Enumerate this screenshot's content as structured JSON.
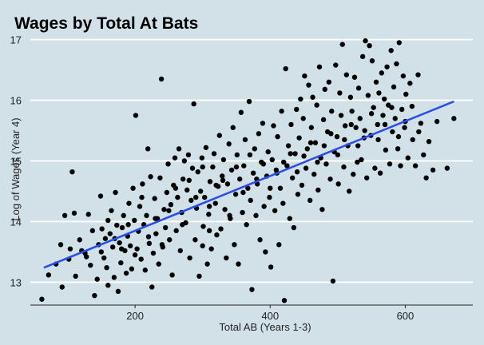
{
  "chart_data": {
    "type": "scatter",
    "title": "Wages by Total At Bats",
    "xlabel": "Total AB (Years 1-3)",
    "ylabel": "Log of Wages (Year 4)",
    "xlim": [
      45,
      700
    ],
    "ylim": [
      12.65,
      17.1
    ],
    "xticks": [
      200,
      400,
      600
    ],
    "yticks": [
      13,
      14,
      15,
      16,
      17
    ],
    "x_tick_labels": [
      "200",
      "400",
      "600"
    ],
    "y_tick_labels": [
      "13",
      "14",
      "15",
      "16",
      "17"
    ],
    "grid": "horizontal",
    "trend_line": {
      "x": [
        65,
        672
      ],
      "y": [
        13.24,
        15.98
      ],
      "color": "#2b4fe6"
    },
    "point_color": "#000000",
    "points": [
      [
        62,
        12.72
      ],
      [
        72,
        13.12
      ],
      [
        83,
        13.3
      ],
      [
        90,
        13.62
      ],
      [
        92,
        12.92
      ],
      [
        96,
        14.1
      ],
      [
        102,
        13.38
      ],
      [
        104,
        13.55
      ],
      [
        107,
        14.82
      ],
      [
        110,
        14.14
      ],
      [
        112,
        13.1
      ],
      [
        118,
        13.7
      ],
      [
        121,
        13.52
      ],
      [
        126,
        13.48
      ],
      [
        128,
        13.42
      ],
      [
        131,
        14.12
      ],
      [
        134,
        13.28
      ],
      [
        137,
        13.85
      ],
      [
        140,
        12.78
      ],
      [
        144,
        13.05
      ],
      [
        146,
        13.62
      ],
      [
        149,
        14.42
      ],
      [
        151,
        13.88
      ],
      [
        154,
        13.4
      ],
      [
        156,
        13.72
      ],
      [
        158,
        13.24
      ],
      [
        160,
        12.95
      ],
      [
        163,
        13.8
      ],
      [
        165,
        14.18
      ],
      [
        167,
        13.58
      ],
      [
        169,
        13.08
      ],
      [
        171,
        14.48
      ],
      [
        173,
        13.94
      ],
      [
        175,
        12.85
      ],
      [
        177,
        13.65
      ],
      [
        179,
        13.32
      ],
      [
        181,
        13.9
      ],
      [
        183,
        14.1
      ],
      [
        185,
        13.52
      ],
      [
        187,
        13.15
      ],
      [
        189,
        13.76
      ],
      [
        191,
        14.3
      ],
      [
        193,
        13.6
      ],
      [
        195,
        13.22
      ],
      [
        197,
        14.55
      ],
      [
        199,
        14.02
      ],
      [
        201,
        15.75
      ],
      [
        203,
        13.55
      ],
      [
        205,
        13.84
      ],
      [
        207,
        14.25
      ],
      [
        209,
        13.38
      ],
      [
        211,
        14.62
      ],
      [
        213,
        13.95
      ],
      [
        215,
        13.2
      ],
      [
        217,
        14.1
      ],
      [
        219,
        15.2
      ],
      [
        221,
        13.64
      ],
      [
        223,
        14.74
      ],
      [
        225,
        12.92
      ],
      [
        227,
        13.48
      ],
      [
        229,
        14.38
      ],
      [
        231,
        13.8
      ],
      [
        233,
        14.05
      ],
      [
        235,
        13.3
      ],
      [
        237,
        14.72
      ],
      [
        239,
        16.35
      ],
      [
        241,
        13.58
      ],
      [
        243,
        14.2
      ],
      [
        245,
        13.9
      ],
      [
        247,
        14.48
      ],
      [
        249,
        14.95
      ],
      [
        251,
        13.7
      ],
      [
        253,
        14.28
      ],
      [
        255,
        13.12
      ],
      [
        257,
        14.6
      ],
      [
        259,
        15.05
      ],
      [
        261,
        13.85
      ],
      [
        263,
        14.4
      ],
      [
        265,
        15.2
      ],
      [
        267,
        13.52
      ],
      [
        269,
        14.15
      ],
      [
        271,
        14.7
      ],
      [
        273,
        15.0
      ],
      [
        275,
        13.98
      ],
      [
        277,
        14.52
      ],
      [
        279,
        15.1
      ],
      [
        281,
        13.4
      ],
      [
        283,
        14.35
      ],
      [
        285,
        14.88
      ],
      [
        287,
        15.94
      ],
      [
        289,
        13.7
      ],
      [
        291,
        14.22
      ],
      [
        293,
        14.82
      ],
      [
        295,
        13.1
      ],
      [
        297,
        14.5
      ],
      [
        299,
        15.05
      ],
      [
        301,
        13.92
      ],
      [
        303,
        14.4
      ],
      [
        305,
        15.22
      ],
      [
        307,
        13.3
      ],
      [
        309,
        14.12
      ],
      [
        311,
        14.66
      ],
      [
        313,
        13.55
      ],
      [
        315,
        14.9
      ],
      [
        317,
        15.12
      ],
      [
        319,
        14.3
      ],
      [
        321,
        13.78
      ],
      [
        323,
        14.58
      ],
      [
        325,
        15.42
      ],
      [
        327,
        13.88
      ],
      [
        329,
        14.75
      ],
      [
        331,
        15.02
      ],
      [
        333,
        14.2
      ],
      [
        335,
        13.4
      ],
      [
        337,
        14.62
      ],
      [
        339,
        15.28
      ],
      [
        341,
        14.05
      ],
      [
        343,
        14.85
      ],
      [
        345,
        15.55
      ],
      [
        347,
        13.62
      ],
      [
        349,
        14.45
      ],
      [
        351,
        15.1
      ],
      [
        353,
        13.3
      ],
      [
        355,
        14.7
      ],
      [
        357,
        15.8
      ],
      [
        359,
        14.15
      ],
      [
        361,
        14.92
      ],
      [
        363,
        15.35
      ],
      [
        365,
        13.95
      ],
      [
        367,
        14.55
      ],
      [
        369,
        15.98
      ],
      [
        371,
        14.35
      ],
      [
        373,
        12.88
      ],
      [
        375,
        14.8
      ],
      [
        377,
        15.2
      ],
      [
        379,
        14.1
      ],
      [
        381,
        14.62
      ],
      [
        383,
        15.45
      ],
      [
        385,
        13.7
      ],
      [
        387,
        14.98
      ],
      [
        389,
        15.62
      ],
      [
        391,
        14.25
      ],
      [
        393,
        13.5
      ],
      [
        395,
        14.75
      ],
      [
        397,
        15.15
      ],
      [
        399,
        14.4
      ],
      [
        401,
        13.25
      ],
      [
        403,
        15.02
      ],
      [
        405,
        15.58
      ],
      [
        407,
        14.18
      ],
      [
        409,
        14.85
      ],
      [
        411,
        15.4
      ],
      [
        413,
        13.62
      ],
      [
        415,
        14.55
      ],
      [
        417,
        15.82
      ],
      [
        419,
        14.3
      ],
      [
        421,
        12.7
      ],
      [
        423,
        16.52
      ],
      [
        425,
        14.92
      ],
      [
        427,
        15.25
      ],
      [
        429,
        14.05
      ],
      [
        431,
        15.6
      ],
      [
        433,
        14.72
      ],
      [
        435,
        13.9
      ],
      [
        437,
        15.12
      ],
      [
        439,
        15.85
      ],
      [
        441,
        14.45
      ],
      [
        443,
        15.38
      ],
      [
        445,
        16.02
      ],
      [
        447,
        14.6
      ],
      [
        449,
        15.7
      ],
      [
        451,
        16.4
      ],
      [
        453,
        14.88
      ],
      [
        455,
        15.2
      ],
      [
        457,
        16.25
      ],
      [
        459,
        14.35
      ],
      [
        461,
        15.55
      ],
      [
        463,
        16.05
      ],
      [
        465,
        14.78
      ],
      [
        467,
        15.3
      ],
      [
        469,
        15.92
      ],
      [
        471,
        14.52
      ],
      [
        473,
        16.55
      ],
      [
        475,
        15.05
      ],
      [
        477,
        14.2
      ],
      [
        479,
        15.68
      ],
      [
        481,
        16.18
      ],
      [
        483,
        14.95
      ],
      [
        485,
        15.48
      ],
      [
        487,
        16.3
      ],
      [
        489,
        14.7
      ],
      [
        491,
        15.82
      ],
      [
        493,
        13.02
      ],
      [
        495,
        15.15
      ],
      [
        497,
        16.58
      ],
      [
        499,
        15.4
      ],
      [
        501,
        14.62
      ],
      [
        503,
        16.12
      ],
      [
        505,
        15.75
      ],
      [
        507,
        16.92
      ],
      [
        509,
        14.9
      ],
      [
        511,
        15.58
      ],
      [
        513,
        16.42
      ],
      [
        515,
        15.25
      ],
      [
        517,
        14.5
      ],
      [
        519,
        16.05
      ],
      [
        521,
        15.82
      ],
      [
        523,
        14.78
      ],
      [
        525,
        16.38
      ],
      [
        527,
        15.55
      ],
      [
        529,
        14.98
      ],
      [
        531,
        16.2
      ],
      [
        533,
        15.7
      ],
      [
        535,
        15.02
      ],
      [
        537,
        16.72
      ],
      [
        539,
        15.38
      ],
      [
        541,
        16.98
      ],
      [
        543,
        14.72
      ],
      [
        545,
        16.08
      ],
      [
        547,
        16.9
      ],
      [
        549,
        15.42
      ],
      [
        551,
        16.65
      ],
      [
        553,
        15.88
      ],
      [
        555,
        14.88
      ],
      [
        557,
        16.3
      ],
      [
        559,
        15.6
      ],
      [
        561,
        16.12
      ],
      [
        563,
        14.8
      ],
      [
        565,
        16.45
      ],
      [
        567,
        15.75
      ],
      [
        569,
        16.02
      ],
      [
        571,
        15.18
      ],
      [
        573,
        16.55
      ],
      [
        575,
        15.92
      ],
      [
        577,
        14.95
      ],
      [
        579,
        16.82
      ],
      [
        581,
        15.48
      ],
      [
        583,
        16.22
      ],
      [
        585,
        15.7
      ],
      [
        587,
        16.6
      ],
      [
        589,
        15.2
      ],
      [
        591,
        16.95
      ],
      [
        593,
        14.92
      ],
      [
        595,
        15.85
      ],
      [
        597,
        16.4
      ],
      [
        599,
        15.55
      ],
      [
        601,
        16.1
      ],
      [
        604,
        15.05
      ],
      [
        607,
        16.28
      ],
      [
        611,
        15.35
      ],
      [
        615,
        14.92
      ],
      [
        619,
        16.42
      ],
      [
        623,
        15.62
      ],
      [
        627,
        15.1
      ],
      [
        631,
        14.72
      ],
      [
        635,
        15.32
      ],
      [
        641,
        14.85
      ],
      [
        647,
        15.65
      ],
      [
        662,
        14.88
      ],
      [
        672,
        15.7
      ],
      [
        330,
        14.68
      ],
      [
        340,
        14.1
      ],
      [
        350,
        14.9
      ],
      [
        360,
        14.48
      ],
      [
        370,
        15.1
      ],
      [
        380,
        14.7
      ],
      [
        390,
        14.95
      ],
      [
        400,
        14.55
      ],
      [
        410,
        14.8
      ],
      [
        420,
        14.98
      ],
      [
        430,
        15.12
      ],
      [
        440,
        14.82
      ],
      [
        450,
        15.08
      ],
      [
        460,
        15.3
      ],
      [
        470,
        14.98
      ],
      [
        480,
        15.25
      ],
      [
        490,
        15.45
      ],
      [
        500,
        15.1
      ],
      [
        510,
        15.35
      ],
      [
        520,
        15.6
      ],
      [
        530,
        15.25
      ],
      [
        540,
        15.5
      ],
      [
        550,
        15.78
      ],
      [
        560,
        15.35
      ],
      [
        570,
        15.6
      ],
      [
        580,
        15.88
      ],
      [
        590,
        15.4
      ],
      [
        600,
        15.65
      ],
      [
        610,
        15.9
      ],
      [
        620,
        15.48
      ],
      [
        250,
        14.18
      ],
      [
        260,
        14.55
      ],
      [
        270,
        13.95
      ],
      [
        280,
        14.68
      ],
      [
        290,
        14.4
      ],
      [
        300,
        14.9
      ],
      [
        310,
        14.25
      ],
      [
        320,
        14.6
      ],
      [
        300,
        13.6
      ],
      [
        310,
        13.85
      ],
      [
        240,
        13.62
      ],
      [
        230,
        14.05
      ],
      [
        220,
        13.75
      ],
      [
        210,
        14.4
      ],
      [
        200,
        13.45
      ],
      [
        190,
        13.95
      ],
      [
        180,
        13.55
      ],
      [
        170,
        13.72
      ],
      [
        160,
        14.02
      ],
      [
        150,
        13.5
      ]
    ]
  }
}
